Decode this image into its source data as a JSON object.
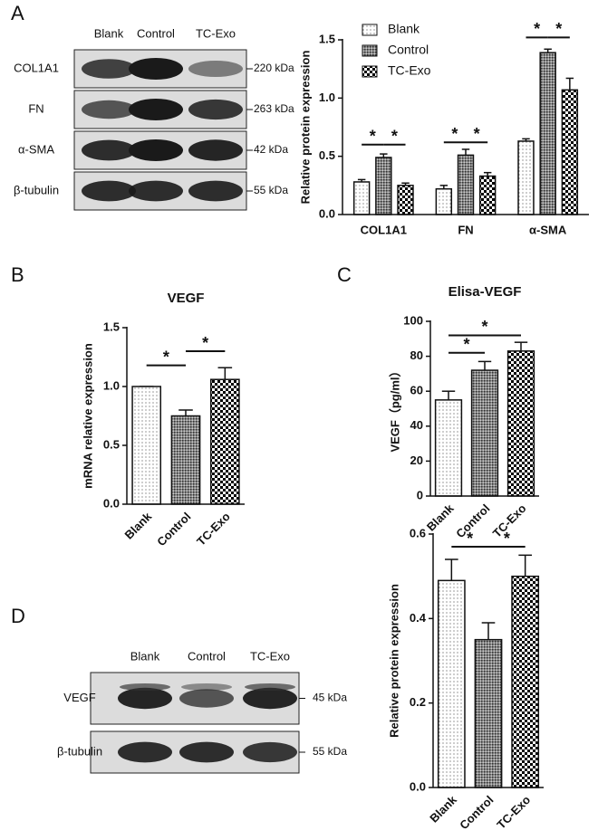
{
  "panel_labels": [
    "A",
    "B",
    "C",
    "D"
  ],
  "blots": [
    {
      "lanes": [
        "Blank",
        "Control",
        "TC-Exo"
      ],
      "rows": [
        {
          "label": "COL1A1",
          "size": "220 kDa"
        },
        {
          "label": "FN",
          "size": "263 kDa"
        },
        {
          "label": "α-SMA",
          "size": "42 kDa"
        },
        {
          "label": "β-tubulin",
          "size": "55 kDa"
        }
      ]
    },
    {
      "lanes": [
        "Blank",
        "Control",
        "TC-Exo"
      ],
      "rows": [
        {
          "label": "VEGF",
          "size": "45 kDa"
        },
        {
          "label": "β-tubulin",
          "size": "55 kDa"
        }
      ]
    }
  ],
  "chart_data": [
    {
      "type": "bar",
      "ylabel": "Relative protein expression",
      "categories": [
        "COL1A1",
        "FN",
        "α-SMA"
      ],
      "series": [
        {
          "name": "Blank",
          "values": [
            0.28,
            0.22,
            0.63
          ],
          "errors": [
            0.02,
            0.03,
            0.02
          ]
        },
        {
          "name": "Control",
          "values": [
            0.49,
            0.51,
            1.39
          ],
          "errors": [
            0.03,
            0.05,
            0.03
          ]
        },
        {
          "name": "TC-Exo",
          "values": [
            0.25,
            0.33,
            1.07
          ],
          "errors": [
            0.02,
            0.03,
            0.1
          ]
        }
      ],
      "ylim": [
        0,
        1.5
      ],
      "yticks": [
        {
          "value": 0,
          "label": "0.0"
        },
        0.5,
        {
          "value": 1,
          "label": "1.0"
        },
        1.5
      ],
      "annotations": [
        "*",
        "*",
        "*",
        "*",
        "*",
        "*"
      ]
    },
    {
      "type": "bar",
      "title": "VEGF",
      "ylabel": "mRNA relative expression",
      "categories": [
        "Blank",
        "Control",
        "TC-Exo"
      ],
      "values": [
        1.0,
        0.75,
        1.06
      ],
      "errors": [
        0,
        0.05,
        0.1
      ],
      "ylim": [
        0,
        1.5
      ],
      "yticks": [
        {
          "value": 0,
          "label": "0.0"
        },
        0.5,
        {
          "value": 1,
          "label": "1.0"
        },
        1.5
      ],
      "annotations": [
        "*",
        "*"
      ]
    },
    {
      "type": "bar",
      "title": "Elisa-VEGF",
      "ylabel": "VEGF（pg/ml）",
      "categories": [
        "Blank",
        "Control",
        "TC-Exo"
      ],
      "values": [
        55,
        72,
        83
      ],
      "errors": [
        5,
        5,
        5
      ],
      "ylim": [
        0,
        100
      ],
      "yticks": [
        0,
        20,
        40,
        60,
        80,
        100
      ],
      "annotations": [
        "*",
        "*"
      ]
    },
    {
      "type": "bar",
      "ylabel": "Relative protein expression",
      "categories": [
        "Blank",
        "Control",
        "TC-Exo"
      ],
      "values": [
        0.49,
        0.35,
        0.5
      ],
      "errors": [
        0.05,
        0.04,
        0.05
      ],
      "ylim": [
        0,
        0.6
      ],
      "yticks": [
        {
          "value": 0,
          "label": "0.0"
        },
        {
          "value": 0.2,
          "label": "0.2"
        },
        {
          "value": 0.4,
          "label": "0.4"
        },
        {
          "value": 0.6,
          "label": "0.6"
        }
      ],
      "annotations": [
        "*",
        "*"
      ]
    }
  ]
}
